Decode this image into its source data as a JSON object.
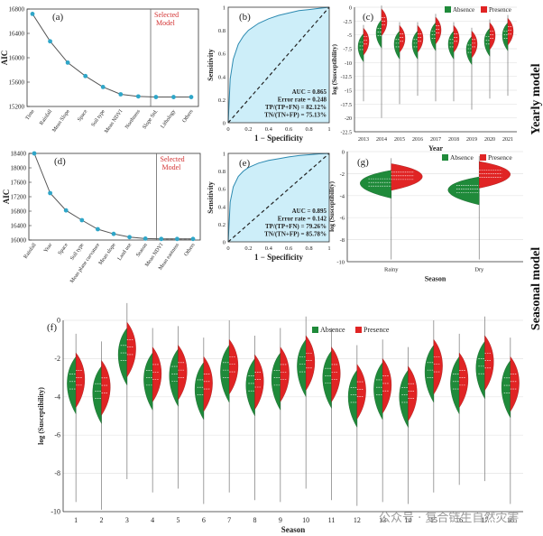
{
  "side_labels": {
    "yearly": "Yearly model",
    "seasonal": "Seasonal model"
  },
  "watermark": "公众号 · 复合链生自然灾害",
  "colors": {
    "absence": "#1f8a3a",
    "presence": "#e02424",
    "roc_fill": "#cdeef9",
    "aic_line": "#555555",
    "aic_point": "#2fa6c8",
    "select_text": "#d33333"
  },
  "chart_data": [
    {
      "id": "a",
      "panel_label": "(a)",
      "type": "line",
      "ylabel": "AIC",
      "categories": [
        "Time",
        "Rainfall",
        "Mean Slope",
        "Space",
        "Soil type",
        "Mean NDVI",
        "Northness",
        "Slope Std.",
        "Lithology",
        "Others"
      ],
      "values": [
        16720,
        16270,
        15920,
        15700,
        15520,
        15400,
        15365,
        15355,
        15355,
        15355
      ],
      "yticks": [
        15200,
        15600,
        16000,
        16400,
        16800
      ],
      "ylim": [
        15200,
        16800
      ],
      "selected_label": "Selected Model",
      "selected_index": 7
    },
    {
      "id": "b",
      "panel_label": "(b)",
      "type": "area",
      "xlabel": "1 − Specificity",
      "ylabel": "Sensitivity",
      "ticks": [
        0,
        0.2,
        0.4,
        0.6,
        0.8,
        1.0
      ],
      "roc_x": [
        0,
        0.02,
        0.05,
        0.1,
        0.15,
        0.2,
        0.3,
        0.4,
        0.5,
        0.6,
        0.7,
        0.8,
        0.9,
        1.0
      ],
      "roc_y": [
        0,
        0.38,
        0.55,
        0.68,
        0.75,
        0.8,
        0.86,
        0.9,
        0.93,
        0.95,
        0.97,
        0.98,
        0.99,
        1.0
      ],
      "stats": [
        "AUC = 0.865",
        "Error rate = 0.248",
        "TP/(TP+FN) = 82.12%",
        "TN/(TN+FP) = 75.13%"
      ]
    },
    {
      "id": "c",
      "panel_label": "(c)",
      "type": "violin",
      "xlabel": "Year",
      "ylabel": "log (Susceptibility)",
      "legend": [
        "Absence",
        "Presence"
      ],
      "categories": [
        "2013",
        "2014",
        "2015",
        "2016",
        "2017",
        "2018",
        "2019",
        "2020",
        "2021"
      ],
      "yticks": [
        0,
        -2.5,
        -5,
        -7.5,
        -10,
        -12.5,
        -15,
        -17.5,
        -20,
        -22.5
      ],
      "ylim": [
        -22.5,
        0
      ],
      "series": [
        {
          "name": "Absence",
          "median": [
            -7,
            -4.5,
            -6.5,
            -6.5,
            -5,
            -6.5,
            -7.5,
            -6,
            -5
          ]
        },
        {
          "name": "Presence",
          "median": [
            -6,
            -2.5,
            -5.5,
            -5.5,
            -4,
            -5.5,
            -6.5,
            -5,
            -4.2
          ]
        }
      ],
      "tails": [
        -17,
        -20,
        -17.5,
        -16,
        -17,
        -17,
        -18.5,
        -16.5,
        -16
      ]
    },
    {
      "id": "d",
      "panel_label": "(d)",
      "type": "line",
      "ylabel": "AIC",
      "categories": [
        "Rainfall",
        "Year",
        "Space",
        "Soil type",
        "Mean plane curvature",
        "Mean slope",
        "Land use",
        "Season",
        "Mean NDVI",
        "Mean eastness",
        "Others"
      ],
      "values": [
        18400,
        17300,
        16820,
        16550,
        16300,
        16170,
        16080,
        16040,
        16030,
        16030,
        16030
      ],
      "yticks": [
        16000,
        16400,
        16800,
        17200,
        17600,
        18000,
        18400
      ],
      "ylim": [
        16000,
        18400
      ],
      "selected_label": "Selected Model",
      "selected_index": 8
    },
    {
      "id": "e",
      "panel_label": "(e)",
      "type": "area",
      "xlabel": "1 − Specificity",
      "ylabel": "Sensitivity",
      "ticks": [
        0,
        0.2,
        0.4,
        0.6,
        0.8,
        1.0
      ],
      "roc_x": [
        0,
        0.02,
        0.05,
        0.1,
        0.15,
        0.2,
        0.3,
        0.4,
        0.5,
        0.6,
        0.7,
        0.8,
        0.9,
        1.0
      ],
      "roc_y": [
        0,
        0.45,
        0.62,
        0.74,
        0.8,
        0.84,
        0.89,
        0.92,
        0.94,
        0.96,
        0.975,
        0.985,
        0.995,
        1.0
      ],
      "stats": [
        "AUC = 0.895",
        "Error rate = 0.142",
        "TP/(TP+FN) = 79.26%",
        "TN/(TN+FP) = 85.78%"
      ]
    },
    {
      "id": "g",
      "panel_label": "(g)",
      "type": "violin",
      "xlabel": "Season",
      "ylabel": "log (Susceptibility)",
      "legend": [
        "Absence",
        "Presence"
      ],
      "categories": [
        "Rainy",
        "Dry"
      ],
      "yticks": [
        0,
        -2,
        -4,
        -6,
        -8,
        -10
      ],
      "ylim": [
        -10,
        0
      ],
      "series": [
        {
          "name": "Absence",
          "median": [
            -2.8,
            -3.4
          ]
        },
        {
          "name": "Presence",
          "median": [
            -2.2,
            -2.0
          ]
        }
      ],
      "tails": [
        -9.8,
        -9.8
      ]
    },
    {
      "id": "f",
      "panel_label": "(f)",
      "type": "violin",
      "xlabel": "Season",
      "ylabel": "log (Susceptibility)",
      "legend": [
        "Absence",
        "Presence"
      ],
      "categories": [
        "1",
        "2",
        "3",
        "4",
        "5",
        "6",
        "7",
        "8",
        "9",
        "10",
        "11",
        "12",
        "13",
        "14",
        "15",
        "16",
        "17",
        "18"
      ],
      "yticks": [
        0,
        -2,
        -4,
        -6,
        -8,
        -10
      ],
      "ylim": [
        -10,
        0
      ],
      "series": [
        {
          "name": "Absence",
          "median": [
            -3.2,
            -3.7,
            -1.7,
            -3.0,
            -2.8,
            -3.5,
            -2.6,
            -3.3,
            -3.0,
            -2.3,
            -2.9,
            -3.9,
            -3.5,
            -3.9,
            -2.6,
            -3.2,
            -2.4,
            -3.4
          ]
        },
        {
          "name": "Presence",
          "median": [
            -3.0,
            -3.4,
            -1.4,
            -2.7,
            -2.6,
            -3.2,
            -2.3,
            -3.1,
            -2.7,
            -2.1,
            -2.7,
            -3.6,
            -3.3,
            -3.7,
            -2.3,
            -3.0,
            -2.1,
            -3.2
          ]
        }
      ],
      "tails": [
        -9.5,
        -9.9,
        -8.3,
        -9.0,
        -8.8,
        -9.6,
        -9.0,
        -9.4,
        -9.5,
        -8.8,
        -9.4,
        -9.7,
        -9.5,
        -9.6,
        -9.0,
        -8.6,
        -8.4,
        -9.6
      ]
    }
  ]
}
